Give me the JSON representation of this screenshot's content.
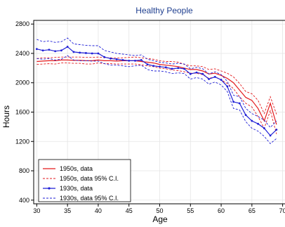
{
  "chart_data": {
    "type": "line",
    "title": "Healthy People",
    "xlabel": "Age",
    "ylabel": "Hours",
    "xlim": [
      29.5,
      70.5
    ],
    "ylim": [
      350,
      2850
    ],
    "xticks": [
      30,
      35,
      40,
      45,
      50,
      55,
      60,
      65,
      70
    ],
    "yticks": [
      400,
      800,
      1200,
      1600,
      2000,
      2400,
      2800
    ],
    "grid": true,
    "legend_position": "bottom-left",
    "x": [
      30,
      31,
      32,
      33,
      34,
      35,
      36,
      37,
      38,
      39,
      40,
      41,
      42,
      43,
      44,
      45,
      46,
      47,
      48,
      49,
      50,
      51,
      52,
      53,
      54,
      55,
      56,
      57,
      58,
      59,
      60,
      61,
      62,
      63,
      64,
      65,
      66,
      67,
      68,
      69
    ],
    "series": [
      {
        "name": "1950s, data",
        "color": "#e31a1c",
        "dash": "solid",
        "marker": false,
        "values": [
          2290,
          2295,
          2300,
          2300,
          2310,
          2310,
          2305,
          2305,
          2300,
          2300,
          2310,
          2300,
          2300,
          2295,
          2300,
          2300,
          2300,
          2290,
          2280,
          2270,
          2250,
          2240,
          2230,
          2220,
          2200,
          2180,
          2180,
          2160,
          2120,
          2130,
          2100,
          2060,
          2000,
          1900,
          1800,
          1760,
          1650,
          1480,
          1720,
          1430
        ]
      },
      {
        "name": "1950s, data 95% C.I.",
        "color": "#e31a1c",
        "dash": "dashed",
        "marker": false,
        "values": [
          2330,
          2340,
          2340,
          2345,
          2350,
          2350,
          2350,
          2350,
          2345,
          2345,
          2350,
          2340,
          2340,
          2335,
          2340,
          2345,
          2350,
          2340,
          2330,
          2320,
          2300,
          2290,
          2290,
          2280,
          2250,
          2230,
          2230,
          2220,
          2180,
          2190,
          2160,
          2130,
          2080,
          1990,
          1880,
          1850,
          1760,
          1580,
          1810,
          1570
        ]
      },
      {
        "name": "",
        "color": "#e31a1c",
        "dash": "dashed",
        "marker": false,
        "values": [
          2250,
          2255,
          2260,
          2255,
          2270,
          2270,
          2265,
          2265,
          2255,
          2255,
          2270,
          2260,
          2260,
          2255,
          2255,
          2255,
          2255,
          2245,
          2230,
          2220,
          2200,
          2190,
          2175,
          2165,
          2150,
          2130,
          2130,
          2110,
          2060,
          2080,
          2040,
          1990,
          1920,
          1810,
          1720,
          1670,
          1540,
          1380,
          1620,
          1300
        ]
      },
      {
        "name": "1930s, data",
        "color": "#1f1fd6",
        "dash": "solid",
        "marker": true,
        "values": [
          2460,
          2440,
          2450,
          2430,
          2440,
          2490,
          2420,
          2410,
          2405,
          2400,
          2400,
          2350,
          2330,
          2320,
          2310,
          2300,
          2300,
          2310,
          2250,
          2230,
          2220,
          2210,
          2190,
          2200,
          2190,
          2120,
          2140,
          2120,
          2050,
          2080,
          2040,
          1950,
          1740,
          1720,
          1560,
          1480,
          1440,
          1380,
          1280,
          1360
        ]
      },
      {
        "name": "1930s, data 95% C.I.",
        "color": "#1f1fd6",
        "dash": "dashed",
        "marker": false,
        "values": [
          2590,
          2560,
          2570,
          2550,
          2560,
          2610,
          2530,
          2520,
          2510,
          2505,
          2505,
          2440,
          2420,
          2400,
          2390,
          2380,
          2370,
          2380,
          2320,
          2300,
          2280,
          2270,
          2255,
          2265,
          2255,
          2190,
          2210,
          2190,
          2120,
          2150,
          2110,
          2020,
          1830,
          1810,
          1650,
          1580,
          1540,
          1490,
          1390,
          1480
        ]
      },
      {
        "name": "",
        "color": "#1f1fd6",
        "dash": "dashed",
        "marker": false,
        "values": [
          2330,
          2320,
          2330,
          2310,
          2320,
          2370,
          2310,
          2300,
          2300,
          2295,
          2295,
          2260,
          2240,
          2240,
          2230,
          2220,
          2230,
          2240,
          2180,
          2160,
          2160,
          2150,
          2125,
          2135,
          2125,
          2050,
          2070,
          2050,
          1980,
          2010,
          1970,
          1880,
          1650,
          1630,
          1470,
          1380,
          1340,
          1270,
          1170,
          1240
        ]
      }
    ]
  }
}
